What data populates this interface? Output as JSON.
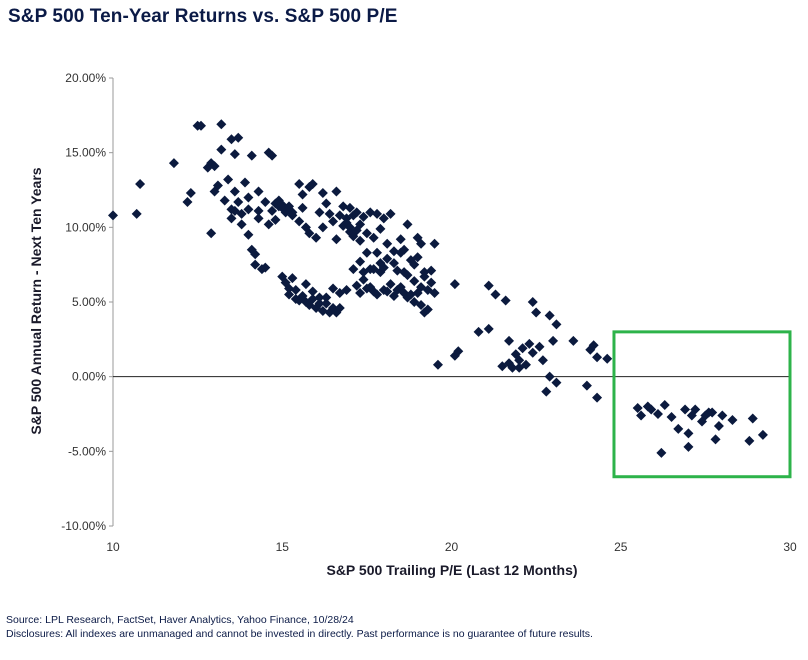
{
  "chart_data": {
    "type": "scatter",
    "title": "S&P 500 Ten-Year Returns vs. S&P 500 P/E",
    "xlabel": "S&P 500 Trailing P/E (Last 12 Months)",
    "ylabel": "S&P 500 Annual Return - Next Ten Years",
    "xlim": [
      10,
      30
    ],
    "ylim": [
      -10,
      20
    ],
    "x_ticks": [
      "10",
      "15",
      "20",
      "25",
      "30"
    ],
    "y_ticks": [
      "20.00%",
      "15.00%",
      "10.00%",
      "5.00%",
      "0.00%",
      "-5.00%",
      "-10.00%"
    ],
    "highlight_box": {
      "x_range": [
        24.8,
        30.0
      ],
      "y_range": [
        -6.7,
        3.0
      ],
      "color": "#2db34a"
    },
    "marker_color": "#0b1a3e",
    "points": [
      [
        10.0,
        10.8
      ],
      [
        10.7,
        10.9
      ],
      [
        10.8,
        12.9
      ],
      [
        11.8,
        14.3
      ],
      [
        12.2,
        11.7
      ],
      [
        12.3,
        12.3
      ],
      [
        12.5,
        16.8
      ],
      [
        12.6,
        16.8
      ],
      [
        12.8,
        14.0
      ],
      [
        12.9,
        14.3
      ],
      [
        12.9,
        9.6
      ],
      [
        13.0,
        14.1
      ],
      [
        13.0,
        12.4
      ],
      [
        13.1,
        12.8
      ],
      [
        13.2,
        16.9
      ],
      [
        13.2,
        15.2
      ],
      [
        13.3,
        11.8
      ],
      [
        13.4,
        13.2
      ],
      [
        13.5,
        15.9
      ],
      [
        13.5,
        11.2
      ],
      [
        13.5,
        10.6
      ],
      [
        13.6,
        12.4
      ],
      [
        13.6,
        14.9
      ],
      [
        13.6,
        11.1
      ],
      [
        13.7,
        16.0
      ],
      [
        13.7,
        11.7
      ],
      [
        13.8,
        10.2
      ],
      [
        13.8,
        10.9
      ],
      [
        13.9,
        13.0
      ],
      [
        14.0,
        12.0
      ],
      [
        14.0,
        9.5
      ],
      [
        14.0,
        11.2
      ],
      [
        14.1,
        8.5
      ],
      [
        14.1,
        14.8
      ],
      [
        14.2,
        8.2
      ],
      [
        14.2,
        7.5
      ],
      [
        14.3,
        12.4
      ],
      [
        14.3,
        11.1
      ],
      [
        14.3,
        10.6
      ],
      [
        14.4,
        7.2
      ],
      [
        14.5,
        7.3
      ],
      [
        14.5,
        11.7
      ],
      [
        14.6,
        15.0
      ],
      [
        14.6,
        10.2
      ],
      [
        14.7,
        14.8
      ],
      [
        14.7,
        11.1
      ],
      [
        14.8,
        11.6
      ],
      [
        14.8,
        10.5
      ],
      [
        14.9,
        11.8
      ],
      [
        14.9,
        11.4
      ],
      [
        15.0,
        11.5
      ],
      [
        15.0,
        11.3
      ],
      [
        15.0,
        6.7
      ],
      [
        15.1,
        11.0
      ],
      [
        15.1,
        6.3
      ],
      [
        15.2,
        5.9
      ],
      [
        15.2,
        11.4
      ],
      [
        15.2,
        5.5
      ],
      [
        15.3,
        6.6
      ],
      [
        15.3,
        11.0
      ],
      [
        15.3,
        10.8
      ],
      [
        15.4,
        5.2
      ],
      [
        15.4,
        5.8
      ],
      [
        15.5,
        12.9
      ],
      [
        15.5,
        10.4
      ],
      [
        15.5,
        5.1
      ],
      [
        15.6,
        5.4
      ],
      [
        15.6,
        11.3
      ],
      [
        15.6,
        12.2
      ],
      [
        15.7,
        10.0
      ],
      [
        15.7,
        6.2
      ],
      [
        15.7,
        5.0
      ],
      [
        15.8,
        4.8
      ],
      [
        15.8,
        9.6
      ],
      [
        15.8,
        12.7
      ],
      [
        15.9,
        12.9
      ],
      [
        15.9,
        5.7
      ],
      [
        15.9,
        5.2
      ],
      [
        16.0,
        4.6
      ],
      [
        16.0,
        9.3
      ],
      [
        16.1,
        5.3
      ],
      [
        16.1,
        11.0
      ],
      [
        16.1,
        4.9
      ],
      [
        16.2,
        12.3
      ],
      [
        16.2,
        10.0
      ],
      [
        16.2,
        4.4
      ],
      [
        16.3,
        4.9
      ],
      [
        16.3,
        11.6
      ],
      [
        16.3,
        5.3
      ],
      [
        16.4,
        4.3
      ],
      [
        16.4,
        10.9
      ],
      [
        16.5,
        4.6
      ],
      [
        16.5,
        5.9
      ],
      [
        16.5,
        10.4
      ],
      [
        16.6,
        9.2
      ],
      [
        16.6,
        12.4
      ],
      [
        16.6,
        4.3
      ],
      [
        16.7,
        5.6
      ],
      [
        16.7,
        4.6
      ],
      [
        16.7,
        10.8
      ],
      [
        16.8,
        10.1
      ],
      [
        16.8,
        11.4
      ],
      [
        16.9,
        5.8
      ],
      [
        16.9,
        10.6
      ],
      [
        16.9,
        10.3
      ],
      [
        17.0,
        11.3
      ],
      [
        17.0,
        9.7
      ],
      [
        17.0,
        10.0
      ],
      [
        17.1,
        9.4
      ],
      [
        17.1,
        10.8
      ],
      [
        17.1,
        7.2
      ],
      [
        17.2,
        6.1
      ],
      [
        17.2,
        9.8
      ],
      [
        17.2,
        11.0
      ],
      [
        17.3,
        5.6
      ],
      [
        17.3,
        7.7
      ],
      [
        17.3,
        9.1
      ],
      [
        17.3,
        10.2
      ],
      [
        17.4,
        6.5
      ],
      [
        17.4,
        7.0
      ],
      [
        17.4,
        10.7
      ],
      [
        17.5,
        5.9
      ],
      [
        17.5,
        9.6
      ],
      [
        17.5,
        8.3
      ],
      [
        17.6,
        6.0
      ],
      [
        17.6,
        7.2
      ],
      [
        17.6,
        11.0
      ],
      [
        17.7,
        5.7
      ],
      [
        17.7,
        9.3
      ],
      [
        17.7,
        7.2
      ],
      [
        17.8,
        10.9
      ],
      [
        17.8,
        8.3
      ],
      [
        17.8,
        5.5
      ],
      [
        17.9,
        7.0
      ],
      [
        17.9,
        7.6
      ],
      [
        17.9,
        9.9
      ],
      [
        18.0,
        5.8
      ],
      [
        18.0,
        10.6
      ],
      [
        18.0,
        7.3
      ],
      [
        18.1,
        5.7
      ],
      [
        18.1,
        8.9
      ],
      [
        18.1,
        7.9
      ],
      [
        18.2,
        6.2
      ],
      [
        18.2,
        10.9
      ],
      [
        18.3,
        5.4
      ],
      [
        18.3,
        7.6
      ],
      [
        18.3,
        8.4
      ],
      [
        18.4,
        5.8
      ],
      [
        18.4,
        7.1
      ],
      [
        18.5,
        9.2
      ],
      [
        18.5,
        6.0
      ],
      [
        18.5,
        8.3
      ],
      [
        18.6,
        7.0
      ],
      [
        18.6,
        5.6
      ],
      [
        18.6,
        8.5
      ],
      [
        18.7,
        10.2
      ],
      [
        18.7,
        5.3
      ],
      [
        18.7,
        6.8
      ],
      [
        18.8,
        5.5
      ],
      [
        18.8,
        7.8
      ],
      [
        18.9,
        6.4
      ],
      [
        18.9,
        5.0
      ],
      [
        18.9,
        7.5
      ],
      [
        19.0,
        9.3
      ],
      [
        19.0,
        5.6
      ],
      [
        19.0,
        8.0
      ],
      [
        19.1,
        4.8
      ],
      [
        19.1,
        6.0
      ],
      [
        19.1,
        8.9
      ],
      [
        19.2,
        4.3
      ],
      [
        19.2,
        6.7
      ],
      [
        19.2,
        7.0
      ],
      [
        19.3,
        5.8
      ],
      [
        19.3,
        4.5
      ],
      [
        19.4,
        6.3
      ],
      [
        19.4,
        7.1
      ],
      [
        19.5,
        8.9
      ],
      [
        19.5,
        5.6
      ],
      [
        19.6,
        0.8
      ],
      [
        20.1,
        1.4
      ],
      [
        20.1,
        6.2
      ],
      [
        20.2,
        1.7
      ],
      [
        20.8,
        3.0
      ],
      [
        21.1,
        6.1
      ],
      [
        21.1,
        3.2
      ],
      [
        21.3,
        5.5
      ],
      [
        21.5,
        0.7
      ],
      [
        21.6,
        5.1
      ],
      [
        21.7,
        0.9
      ],
      [
        21.7,
        2.4
      ],
      [
        21.8,
        0.6
      ],
      [
        21.9,
        1.5
      ],
      [
        22.0,
        1.1
      ],
      [
        22.0,
        0.6
      ],
      [
        22.1,
        1.9
      ],
      [
        22.2,
        0.8
      ],
      [
        22.3,
        2.2
      ],
      [
        22.4,
        1.6
      ],
      [
        22.4,
        5.0
      ],
      [
        22.5,
        4.3
      ],
      [
        22.6,
        2.0
      ],
      [
        22.7,
        1.1
      ],
      [
        22.8,
        -1.0
      ],
      [
        22.9,
        4.1
      ],
      [
        22.9,
        0.0
      ],
      [
        23.0,
        2.4
      ],
      [
        23.1,
        3.5
      ],
      [
        23.1,
        -0.4
      ],
      [
        23.6,
        2.4
      ],
      [
        24.0,
        -0.6
      ],
      [
        24.1,
        1.8
      ],
      [
        24.2,
        2.1
      ],
      [
        24.3,
        1.3
      ],
      [
        24.3,
        -1.4
      ],
      [
        24.6,
        1.2
      ],
      [
        25.5,
        -2.1
      ],
      [
        25.6,
        -2.6
      ],
      [
        25.8,
        -2.0
      ],
      [
        25.9,
        -2.2
      ],
      [
        26.1,
        -2.5
      ],
      [
        26.2,
        -5.1
      ],
      [
        26.3,
        -1.9
      ],
      [
        26.5,
        -2.7
      ],
      [
        26.7,
        -3.5
      ],
      [
        26.9,
        -2.2
      ],
      [
        27.0,
        -3.8
      ],
      [
        27.0,
        -4.7
      ],
      [
        27.1,
        -2.6
      ],
      [
        27.2,
        -2.2
      ],
      [
        27.4,
        -3.0
      ],
      [
        27.5,
        -2.6
      ],
      [
        27.6,
        -2.4
      ],
      [
        27.7,
        -2.4
      ],
      [
        27.8,
        -4.2
      ],
      [
        27.9,
        -3.3
      ],
      [
        28.0,
        -2.6
      ],
      [
        28.3,
        -2.9
      ],
      [
        28.8,
        -4.3
      ],
      [
        28.9,
        -2.8
      ],
      [
        29.2,
        -3.9
      ]
    ]
  },
  "footer": {
    "source": "Source: LPL Research, FactSet, Haver Analytics, Yahoo Finance, 10/28/24",
    "disclosures": "Disclosures: All indexes are unmanaged and cannot be invested in directly. Past performance is no guarantee of future results."
  }
}
